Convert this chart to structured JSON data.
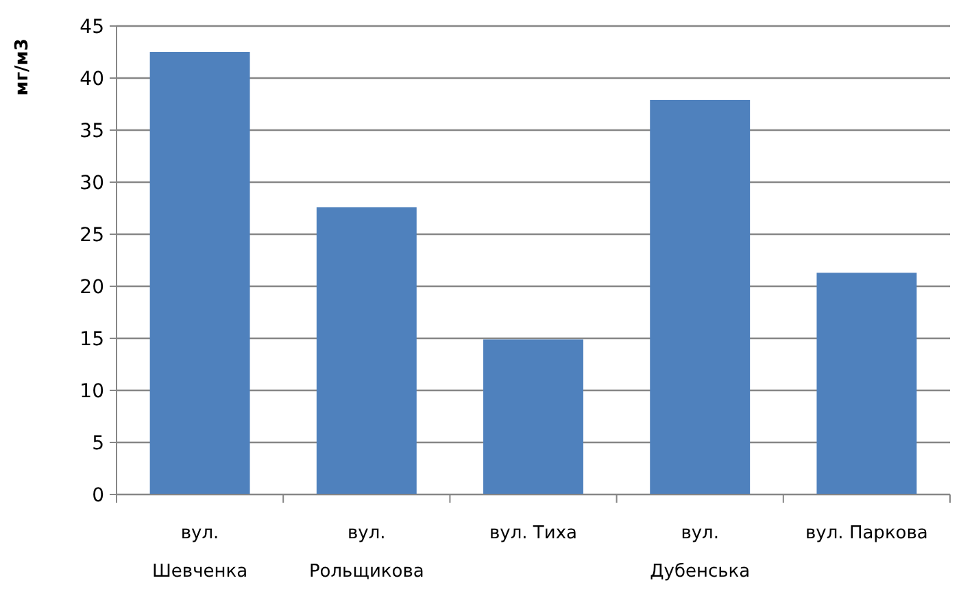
{
  "chart_data": {
    "type": "bar",
    "ylabel": "мг/м3",
    "categories": [
      "вул. Шевченка",
      "вул. Рольщикова",
      "вул. Тиха",
      "вул. Дубенська",
      "вул. Паркова"
    ],
    "values": [
      42.5,
      27.6,
      14.9,
      37.9,
      21.3
    ],
    "color": "#4f81bd",
    "ylim": [
      0,
      45
    ],
    "yticks": [
      0,
      5,
      10,
      15,
      20,
      25,
      30,
      35,
      40,
      45
    ],
    "grid": "y"
  }
}
